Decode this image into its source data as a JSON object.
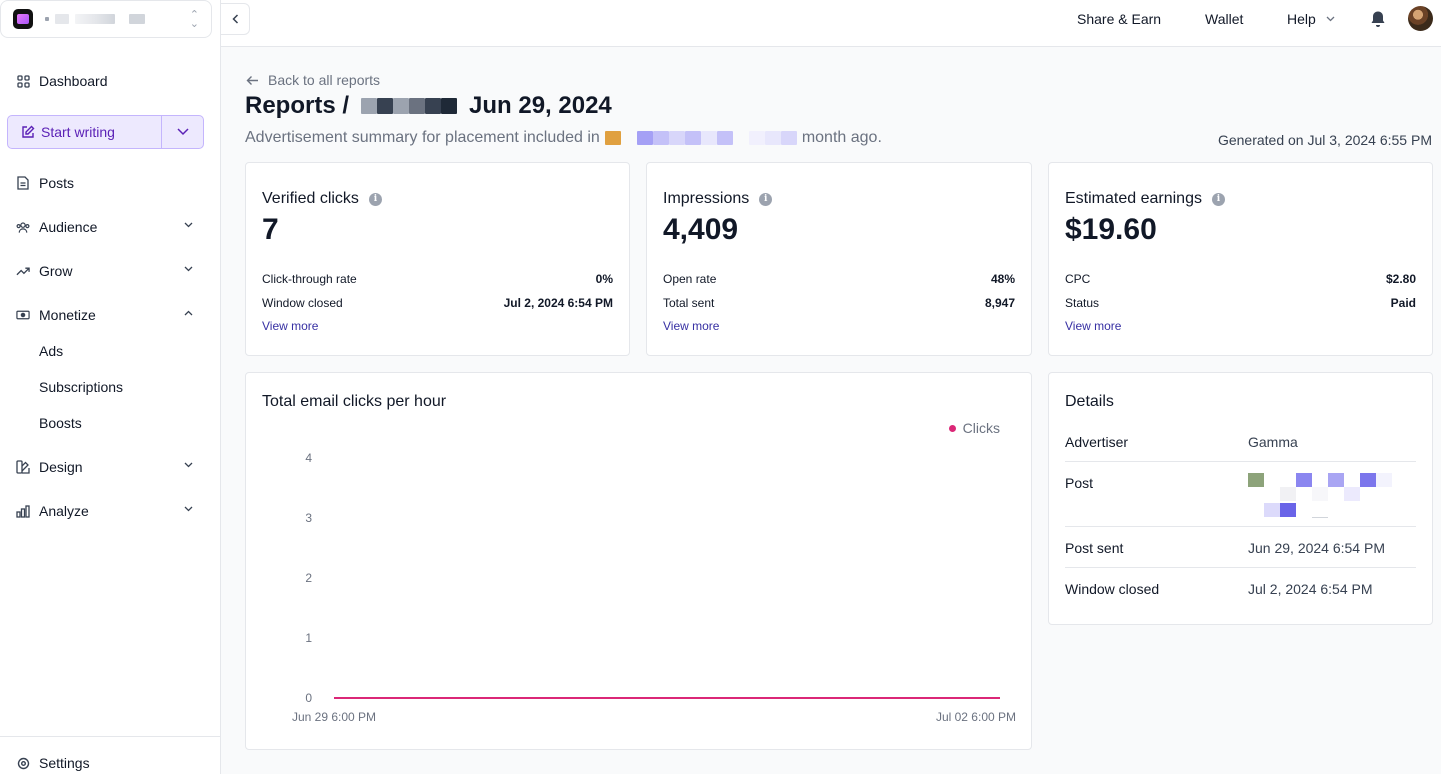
{
  "sidebar": {
    "nav": {
      "dashboard": "Dashboard",
      "start_writing": "Start writing",
      "posts": "Posts",
      "audience": "Audience",
      "grow": "Grow",
      "monetize": "Monetize",
      "ads": "Ads",
      "subscriptions": "Subscriptions",
      "boosts": "Boosts",
      "design": "Design",
      "analyze": "Analyze",
      "settings": "Settings"
    }
  },
  "topbar": {
    "share_earn": "Share & Earn",
    "wallet": "Wallet",
    "help": "Help"
  },
  "header": {
    "back_link": "Back to all reports",
    "title_prefix": "Reports /",
    "title_date": "Jun 29, 2024",
    "subtitle_prefix": "Advertisement summary for placement included in",
    "subtitle_suffix": "month ago.",
    "generated": "Generated on Jul 3, 2024 6:55 PM"
  },
  "stats": {
    "verified_clicks": {
      "label": "Verified clicks",
      "value": "7",
      "row1_label": "Click-through rate",
      "row1_value": "0%",
      "row2_label": "Window closed",
      "row2_value": "Jul 2, 2024 6:54 PM",
      "view_more": "View more"
    },
    "impressions": {
      "label": "Impressions",
      "value": "4,409",
      "row1_label": "Open rate",
      "row1_value": "48%",
      "row2_label": "Total sent",
      "row2_value": "8,947",
      "view_more": "View more"
    },
    "earnings": {
      "label": "Estimated earnings",
      "value": "$19.60",
      "row1_label": "CPC",
      "row1_value": "$2.80",
      "row2_label": "Status",
      "row2_value": "Paid",
      "view_more": "View more"
    }
  },
  "chart_data": {
    "type": "line",
    "title": "Total email clicks per hour",
    "series": [
      {
        "name": "Clicks",
        "color": "#db2777",
        "values": [
          0,
          0
        ]
      }
    ],
    "x": [
      "Jun 29 6:00 PM",
      "Jul 02 6:00 PM"
    ],
    "y_ticks": [
      "0",
      "1",
      "2",
      "3",
      "4"
    ],
    "ylim": [
      0,
      4
    ],
    "legend": "top-right",
    "grid": false
  },
  "details": {
    "title": "Details",
    "advertiser_label": "Advertiser",
    "advertiser_value": "Gamma",
    "post_label": "Post",
    "post_sent_label": "Post sent",
    "post_sent_value": "Jun 29, 2024 6:54 PM",
    "window_closed_label": "Window closed",
    "window_closed_value": "Jul 2, 2024 6:54 PM"
  },
  "colors": {
    "accent": "#5b21b6",
    "link": "#3730a3",
    "series": "#db2777"
  }
}
